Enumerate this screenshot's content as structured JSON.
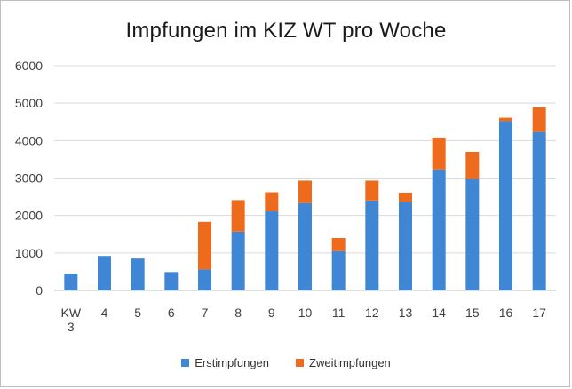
{
  "chart_data": {
    "type": "bar",
    "stacked": true,
    "title": "Impfungen im KIZ WT pro Woche",
    "xlabel": "",
    "ylabel": "",
    "categories": [
      "KW 3",
      "4",
      "5",
      "6",
      "7",
      "8",
      "9",
      "10",
      "11",
      "12",
      "13",
      "14",
      "15",
      "16",
      "17"
    ],
    "series": [
      {
        "name": "Erstimpfungen",
        "color": "#3f86d4",
        "values": [
          450,
          920,
          850,
          490,
          560,
          1570,
          2110,
          2330,
          1050,
          2400,
          2360,
          3230,
          2980,
          4520,
          4230
        ]
      },
      {
        "name": "Zweitimpfungen",
        "color": "#ee6a1c",
        "values": [
          0,
          0,
          0,
          0,
          1270,
          840,
          510,
          600,
          350,
          530,
          250,
          850,
          720,
          90,
          660
        ]
      }
    ],
    "ylim": [
      0,
      6000
    ],
    "yticks": [
      0,
      1000,
      2000,
      3000,
      4000,
      5000,
      6000
    ],
    "grid": true,
    "legend_position": "bottom"
  }
}
